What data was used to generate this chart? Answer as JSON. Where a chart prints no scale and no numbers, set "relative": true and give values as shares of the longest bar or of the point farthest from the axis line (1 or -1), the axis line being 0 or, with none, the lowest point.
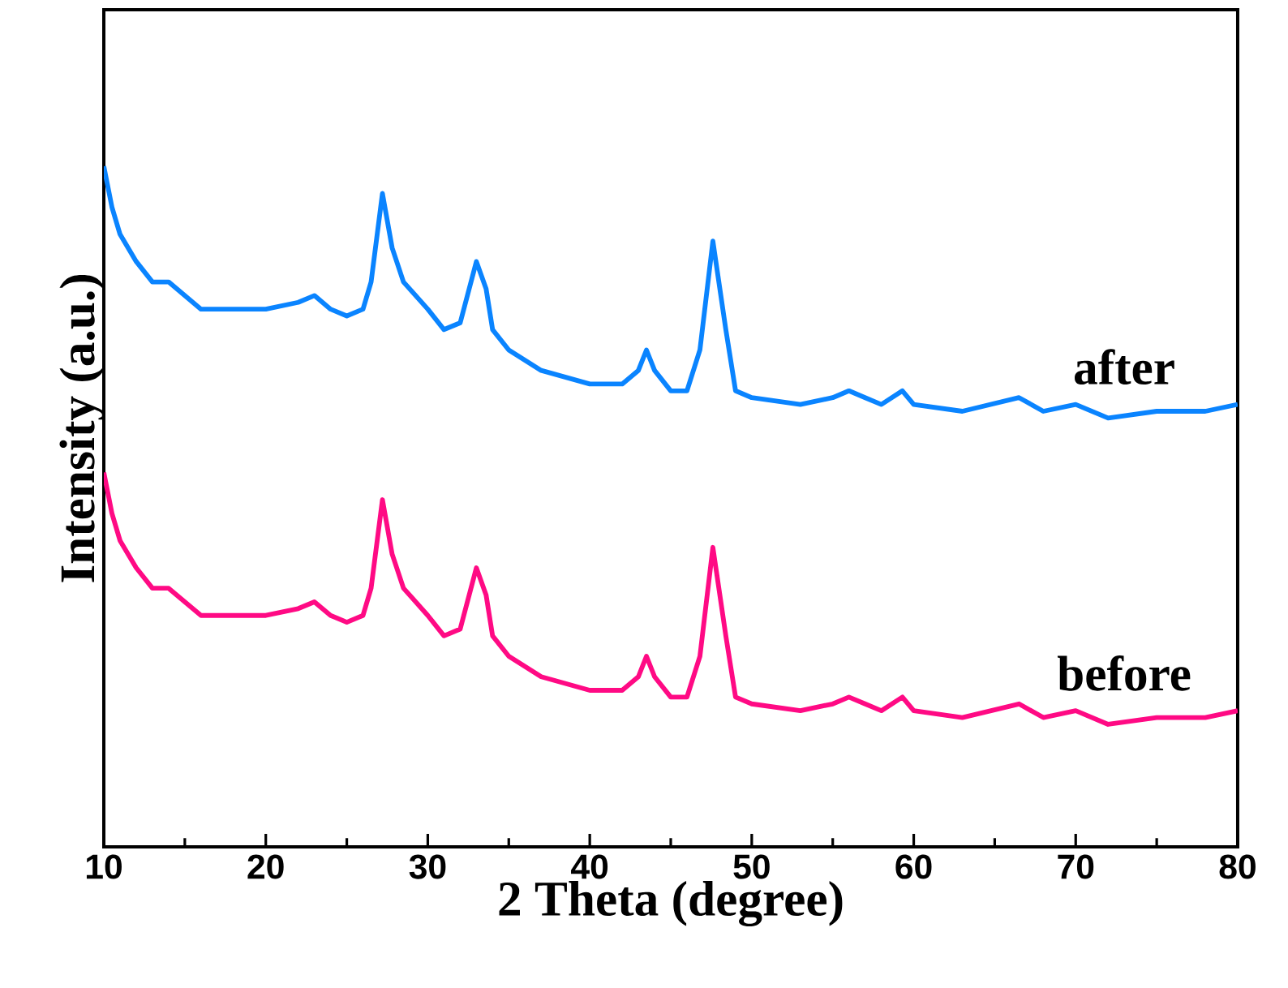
{
  "chart_data": {
    "type": "line",
    "relative": true,
    "xlabel": "2 Theta (degree)",
    "ylabel": "Intensity (a.u.)",
    "xlim": [
      10,
      80
    ],
    "xticks": [
      10,
      20,
      30,
      40,
      50,
      60,
      70,
      80
    ],
    "marker": "none",
    "line_style": "solid",
    "legend": false,
    "x": [
      10,
      10.5,
      11,
      12,
      13,
      14,
      15,
      16,
      18,
      20,
      22,
      23,
      24,
      25,
      26,
      26.5,
      27.2,
      27.8,
      28.5,
      30,
      31,
      32,
      33,
      33.6,
      34,
      35,
      37,
      40,
      42,
      43,
      43.5,
      44,
      45,
      46,
      46.8,
      47.6,
      48.4,
      49,
      50,
      53,
      55,
      56,
      57,
      58,
      59.3,
      60,
      63,
      66.5,
      68,
      70,
      72,
      75,
      78,
      80
    ],
    "series": [
      {
        "name": "after",
        "color": "#0a84ff",
        "values": [
          1.0,
          0.94,
          0.9,
          0.86,
          0.83,
          0.83,
          0.81,
          0.79,
          0.79,
          0.79,
          0.8,
          0.81,
          0.79,
          0.78,
          0.79,
          0.83,
          0.96,
          0.88,
          0.83,
          0.79,
          0.76,
          0.77,
          0.86,
          0.82,
          0.76,
          0.73,
          0.7,
          0.68,
          0.68,
          0.7,
          0.73,
          0.7,
          0.67,
          0.67,
          0.73,
          0.89,
          0.76,
          0.67,
          0.66,
          0.65,
          0.66,
          0.67,
          0.66,
          0.65,
          0.67,
          0.65,
          0.64,
          0.66,
          0.64,
          0.65,
          0.63,
          0.64,
          0.64,
          0.65
        ]
      },
      {
        "name": "before",
        "color": "#ff0a84",
        "values": [
          0.55,
          0.49,
          0.45,
          0.41,
          0.38,
          0.38,
          0.36,
          0.34,
          0.34,
          0.34,
          0.35,
          0.36,
          0.34,
          0.33,
          0.34,
          0.38,
          0.51,
          0.43,
          0.38,
          0.34,
          0.31,
          0.32,
          0.41,
          0.37,
          0.31,
          0.28,
          0.25,
          0.23,
          0.23,
          0.25,
          0.28,
          0.25,
          0.22,
          0.22,
          0.28,
          0.44,
          0.31,
          0.22,
          0.21,
          0.2,
          0.21,
          0.22,
          0.21,
          0.2,
          0.22,
          0.2,
          0.19,
          0.21,
          0.19,
          0.2,
          0.18,
          0.19,
          0.19,
          0.2
        ]
      }
    ]
  }
}
